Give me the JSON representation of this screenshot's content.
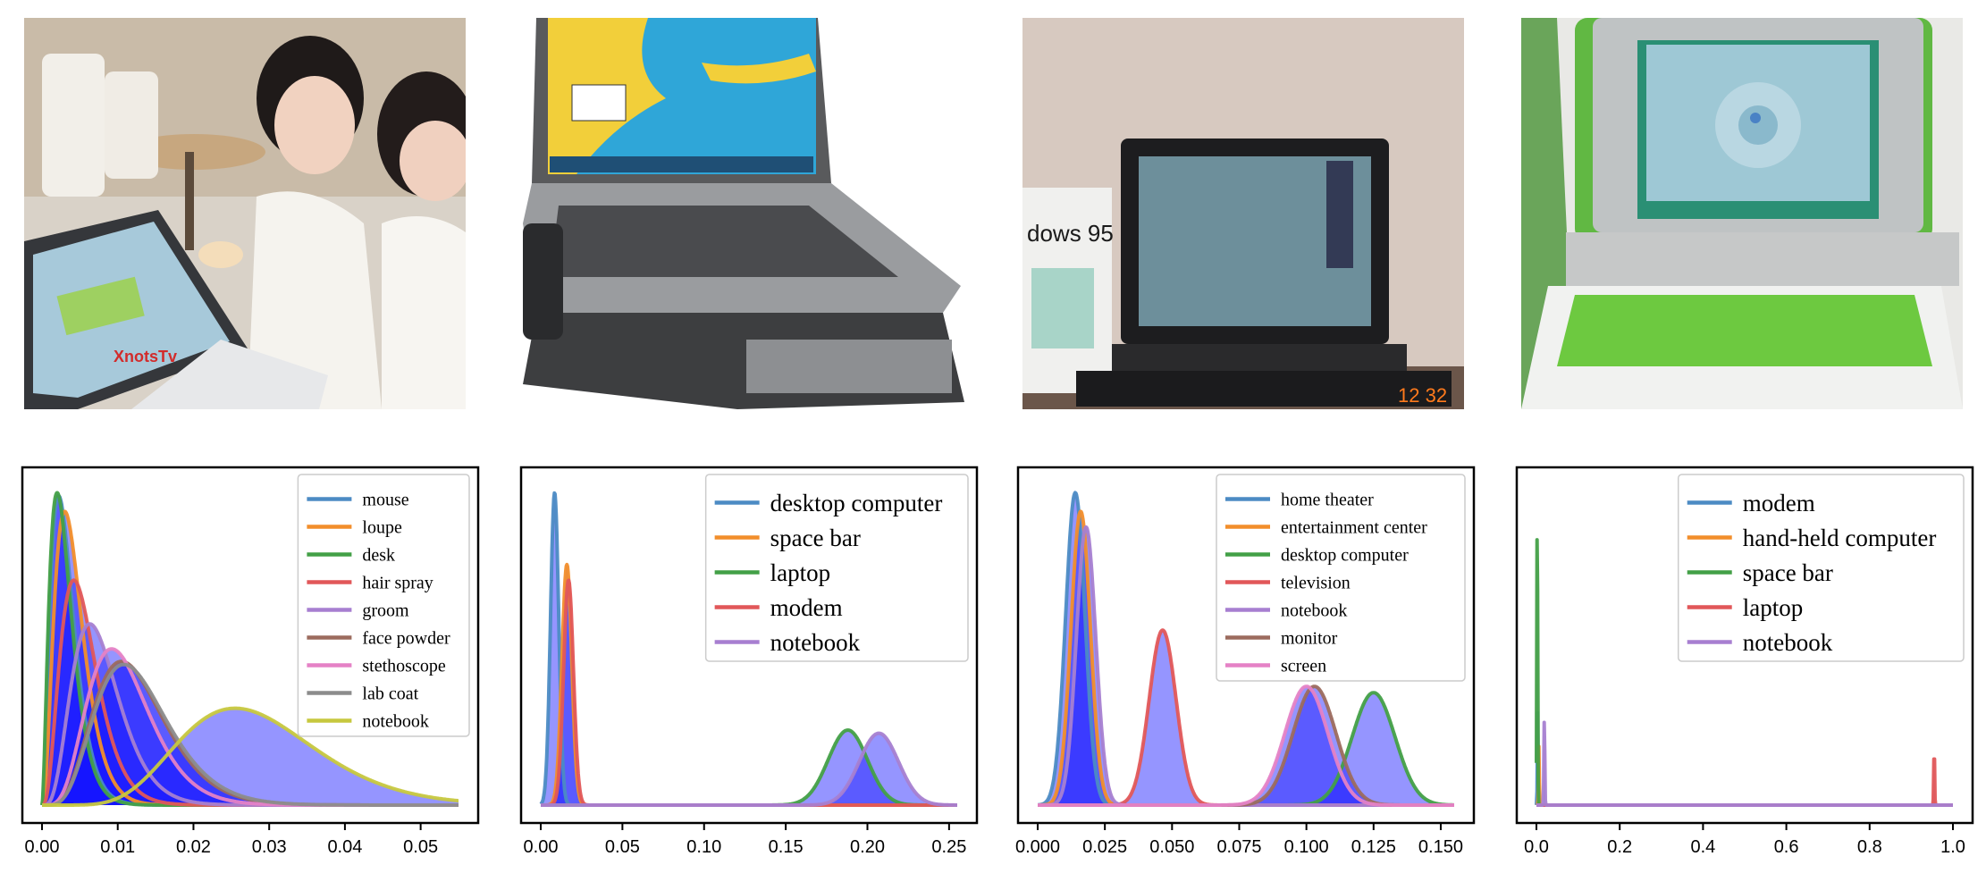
{
  "panels": [
    {
      "photo": {
        "description_icon": "photo-icon",
        "overlay_text": "XnotsTv"
      },
      "chart": {
        "type": "line",
        "xlim": [
          0,
          0.055
        ],
        "ylim": [
          0,
          1
        ],
        "xticks": [
          0.0,
          0.01,
          0.02,
          0.03,
          0.04,
          0.05
        ],
        "xtick_labels": [
          "0.00",
          "0.01",
          "0.02",
          "0.03",
          "0.04",
          "0.05"
        ],
        "legend_position": "top-right",
        "legend_font": "small",
        "series": [
          {
            "name": "mouse",
            "color": "#4c8bc4",
            "mode": 0.0022,
            "peak": 0.99,
            "shape": 3
          },
          {
            "name": "loupe",
            "color": "#f28e2b",
            "mode": 0.003,
            "peak": 0.94,
            "shape": 3.5
          },
          {
            "name": "desk",
            "color": "#43a047",
            "mode": 0.002,
            "peak": 1.0,
            "shape": 2.8
          },
          {
            "name": "hair spray",
            "color": "#e15759",
            "mode": 0.0042,
            "peak": 0.72,
            "shape": 4
          },
          {
            "name": "groom",
            "color": "#a77fd1",
            "mode": 0.0063,
            "peak": 0.58,
            "shape": 5
          },
          {
            "name": "face powder",
            "color": "#9c6b5e",
            "mode": 0.0105,
            "peak": 0.46,
            "shape": 6
          },
          {
            "name": "stethoscope",
            "color": "#e582c6",
            "mode": 0.0092,
            "peak": 0.5,
            "shape": 6
          },
          {
            "name": "lab coat",
            "color": "#8c8c8c",
            "mode": 0.0108,
            "peak": 0.45,
            "shape": 6
          },
          {
            "name": "notebook",
            "color": "#c7c83f",
            "mode": 0.0255,
            "peak": 0.31,
            "shape": 9
          }
        ],
        "fill_under": "notebook-like blue region"
      }
    },
    {
      "photo": {
        "description_icon": "photo-icon"
      },
      "chart": {
        "type": "line",
        "xlim": [
          0,
          0.255
        ],
        "ylim": [
          0,
          1
        ],
        "xticks": [
          0.0,
          0.05,
          0.1,
          0.15,
          0.2,
          0.25
        ],
        "xtick_labels": [
          "0.00",
          "0.05",
          "0.10",
          "0.15",
          "0.20",
          "0.25"
        ],
        "legend_position": "top-right",
        "legend_font": "large",
        "series": [
          {
            "name": "desktop computer",
            "color": "#4c8bc4",
            "mu": 0.0085,
            "sd": 0.0025,
            "peak": 1.0
          },
          {
            "name": "space bar",
            "color": "#f28e2b",
            "mu": 0.016,
            "sd": 0.003,
            "peak": 0.77
          },
          {
            "name": "laptop",
            "color": "#43a047",
            "mu": 0.188,
            "sd": 0.012,
            "peak": 0.24
          },
          {
            "name": "modem",
            "color": "#e15759",
            "mu": 0.017,
            "sd": 0.003,
            "peak": 0.72
          },
          {
            "name": "notebook",
            "color": "#a77fd1",
            "mu": 0.207,
            "sd": 0.012,
            "peak": 0.23
          }
        ]
      }
    },
    {
      "photo": {
        "description_icon": "photo-icon",
        "overlay_text": "dows 95",
        "timestamp_text": "12  32"
      },
      "chart": {
        "type": "line",
        "xlim": [
          0,
          0.155
        ],
        "ylim": [
          0,
          1
        ],
        "xticks": [
          0.0,
          0.025,
          0.05,
          0.075,
          0.1,
          0.125,
          0.15
        ],
        "xtick_labels": [
          "0.000",
          "0.025",
          "0.050",
          "0.075",
          "0.100",
          "0.125",
          "0.150"
        ],
        "legend_position": "top-right",
        "legend_font": "small",
        "series": [
          {
            "name": "home theater",
            "color": "#4c8bc4",
            "mu": 0.014,
            "sd": 0.0036,
            "peak": 1.0
          },
          {
            "name": "entertainment center",
            "color": "#f28e2b",
            "mu": 0.016,
            "sd": 0.0036,
            "peak": 0.94
          },
          {
            "name": "desktop computer",
            "color": "#43a047",
            "mu": 0.125,
            "sd": 0.008,
            "peak": 0.36
          },
          {
            "name": "television",
            "color": "#e15759",
            "mu": 0.0465,
            "sd": 0.005,
            "peak": 0.56
          },
          {
            "name": "notebook",
            "color": "#a77fd1",
            "mu": 0.018,
            "sd": 0.0036,
            "peak": 0.89
          },
          {
            "name": "monitor",
            "color": "#9c6b5e",
            "mu": 0.103,
            "sd": 0.008,
            "peak": 0.38
          },
          {
            "name": "screen",
            "color": "#e582c6",
            "mu": 0.1,
            "sd": 0.008,
            "peak": 0.38
          }
        ]
      }
    },
    {
      "photo": {
        "description_icon": "photo-icon"
      },
      "chart": {
        "type": "line",
        "xlim": [
          0,
          1.0
        ],
        "ylim": [
          0,
          1
        ],
        "xticks": [
          0.0,
          0.2,
          0.4,
          0.6,
          0.8,
          1.0
        ],
        "xtick_labels": [
          "0.0",
          "0.2",
          "0.4",
          "0.6",
          "0.8",
          "1.0"
        ],
        "legend_position": "top-right",
        "legend_font": "large",
        "series": [
          {
            "name": "modem",
            "color": "#4c8bc4",
            "mu": 0.003,
            "sd": 0.0008,
            "peak": 0.3
          },
          {
            "name": "hand-held computer",
            "color": "#f28e2b",
            "mu": 0.006,
            "sd": 0.0008,
            "peak": 0.2
          },
          {
            "name": "space bar",
            "color": "#43a047",
            "mu": 0.002,
            "sd": 0.001,
            "peak": 1.0
          },
          {
            "name": "laptop",
            "color": "#e15759",
            "mu": 0.955,
            "sd": 0.001,
            "peak": 0.19
          },
          {
            "name": "notebook",
            "color": "#a77fd1",
            "mu": 0.019,
            "sd": 0.001,
            "peak": 0.29
          }
        ]
      }
    }
  ],
  "chart_data": [
    {
      "type": "line",
      "x_ticks": [
        "0.00",
        "0.01",
        "0.02",
        "0.03",
        "0.04",
        "0.05"
      ],
      "legend": [
        "mouse",
        "loupe",
        "desk",
        "hair spray",
        "groom",
        "face powder",
        "stethoscope",
        "lab coat",
        "notebook"
      ],
      "peaks_x": [
        0.0022,
        0.003,
        0.002,
        0.0042,
        0.0063,
        0.0105,
        0.0092,
        0.0108,
        0.0255
      ]
    },
    {
      "type": "line",
      "x_ticks": [
        "0.00",
        "0.05",
        "0.10",
        "0.15",
        "0.20",
        "0.25"
      ],
      "legend": [
        "desktop computer",
        "space bar",
        "laptop",
        "modem",
        "notebook"
      ],
      "peaks_x": [
        0.0085,
        0.016,
        0.188,
        0.017,
        0.207
      ]
    },
    {
      "type": "line",
      "x_ticks": [
        "0.000",
        "0.025",
        "0.050",
        "0.075",
        "0.100",
        "0.125",
        "0.150"
      ],
      "legend": [
        "home theater",
        "entertainment center",
        "desktop computer",
        "television",
        "notebook",
        "monitor",
        "screen"
      ],
      "peaks_x": [
        0.014,
        0.016,
        0.125,
        0.0465,
        0.018,
        0.103,
        0.1
      ]
    },
    {
      "type": "line",
      "x_ticks": [
        "0.0",
        "0.2",
        "0.4",
        "0.6",
        "0.8",
        "1.0"
      ],
      "legend": [
        "modem",
        "hand-held computer",
        "space bar",
        "laptop",
        "notebook"
      ],
      "peaks_x": [
        0.003,
        0.006,
        0.002,
        0.955,
        0.019
      ]
    }
  ]
}
